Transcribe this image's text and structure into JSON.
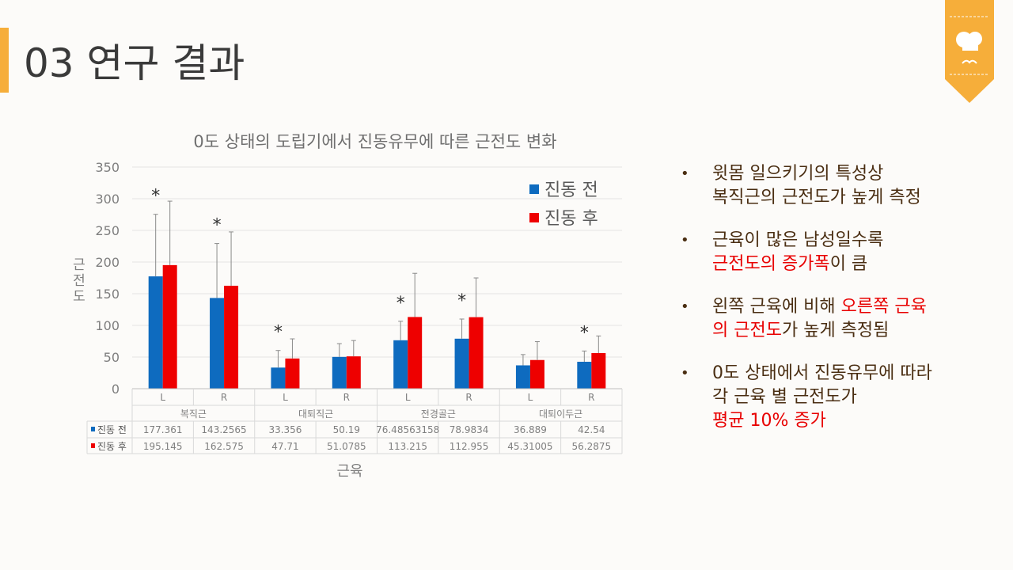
{
  "slide": {
    "title": "03 연구 결과"
  },
  "bullets": [
    {
      "parts": [
        {
          "text": "윗몸 일으키기의 특성상",
          "color": "normal"
        },
        {
          "text": "\n 복직근의 근전도가 높게 측정",
          "color": "normal"
        }
      ]
    },
    {
      "parts": [
        {
          "text": "근육이 많은 남성일수록",
          "color": "normal"
        },
        {
          "text": "\n 근전도의 증가폭",
          "color": "red"
        },
        {
          "text": "이 큼",
          "color": "normal"
        }
      ]
    },
    {
      "parts": [
        {
          "text": "왼쪽 근육에 비해 ",
          "color": "normal"
        },
        {
          "text": "오른쪽 근육\n의 근전도",
          "color": "red"
        },
        {
          "text": "가 높게 측정됨",
          "color": "normal"
        }
      ]
    },
    {
      "parts": [
        {
          "text": "0도 상태에서 진동유무에 따라\n각 근육 별 근전도가",
          "color": "normal"
        },
        {
          "text": "\n 평균 10% 증가",
          "color": "red"
        }
      ]
    }
  ],
  "chart_data": {
    "type": "bar",
    "title": "0도 상태의 도립기에서 진동유무에 따른 근전도 변화",
    "xlabel": "근육",
    "ylabel": "근전도",
    "ylim": [
      0,
      350
    ],
    "yticks": [
      0,
      50,
      100,
      150,
      200,
      250,
      300,
      350
    ],
    "categories": [
      "L",
      "R",
      "L",
      "R",
      "L",
      "R",
      "L",
      "R"
    ],
    "groups": [
      "복직근",
      "대퇴직근",
      "전경골근",
      "대퇴이두근"
    ],
    "series": [
      {
        "name": "진동 전",
        "color": "#0e6bbf",
        "values": [
          177.361,
          143.2565,
          33.356,
          50.19,
          76.48563158,
          78.9834,
          36.889,
          42.54
        ],
        "labels": [
          "177.361",
          "143.2565",
          "33.356",
          "50.19",
          "76.48563158",
          "78.9834",
          "36.889",
          "42.54"
        ],
        "errors": [
          98,
          86,
          27,
          21,
          30,
          31,
          17,
          17
        ]
      },
      {
        "name": "진동 후",
        "color": "#ee0000",
        "values": [
          195.145,
          162.575,
          47.71,
          51.0785,
          113.215,
          112.955,
          45.31005,
          56.2875
        ],
        "labels": [
          "195.145",
          "162.575",
          "47.71",
          "51.0785",
          "113.215",
          "112.955",
          "45.31005",
          "56.2875"
        ],
        "errors": [
          101,
          85,
          31,
          25,
          69,
          62,
          29,
          27
        ]
      }
    ],
    "significance": [
      true,
      true,
      true,
      false,
      true,
      true,
      false,
      true
    ],
    "significance_mark": "*",
    "legend": "top-right",
    "grid": true
  }
}
